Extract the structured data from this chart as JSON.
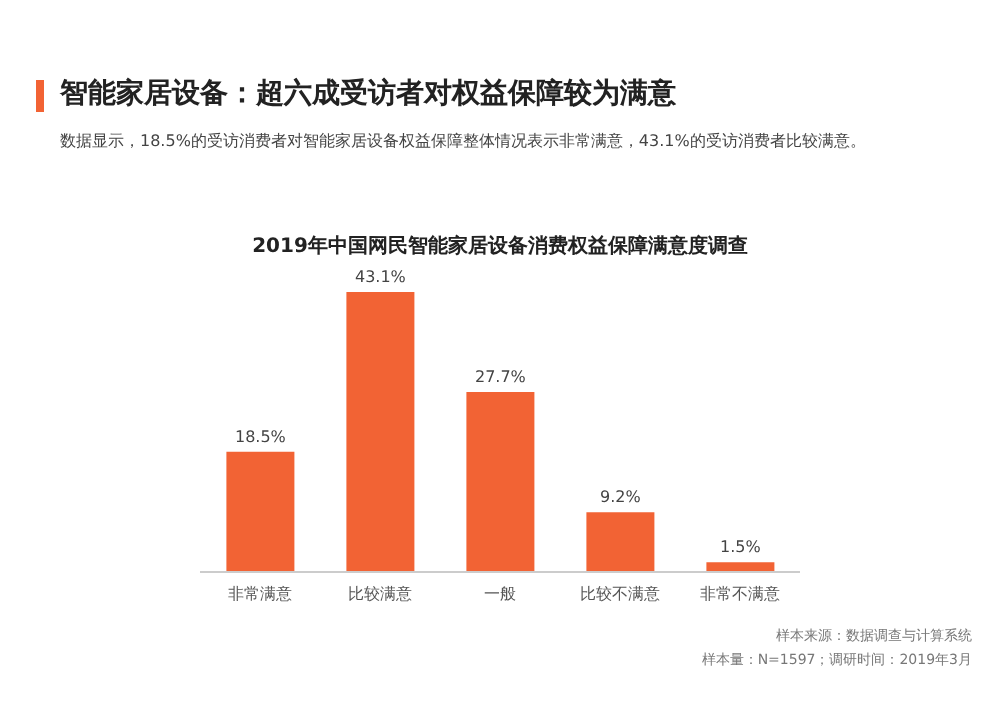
{
  "chart_data": {
    "type": "bar",
    "title": "智能家居设备：超六成受访者对权益保障较为满意",
    "subtitle": "数据显示，18.5%的受访消费者对智能家居设备权益保障整体情况表示非常满意，43.1%的受访消费者比较满意。",
    "annotations": [
      "2019年中国网民智能家居设备消费权益保障满意度调查",
      "样本来源：数据调查与计算系统",
      "样本量：N=1597；调研时间：2019年3月"
    ],
    "categories": [
      "非常满意",
      "比较满意",
      "一般",
      "比较不满意",
      "非常不满意"
    ],
    "values": [
      18.5,
      43.1,
      27.7,
      9.2,
      1.5
    ],
    "value_labels": [
      "18.5%",
      "43.1%",
      "27.7%",
      "9.2%",
      "1.5%"
    ],
    "color": "#f26334",
    "grid": false,
    "legend": false
  }
}
